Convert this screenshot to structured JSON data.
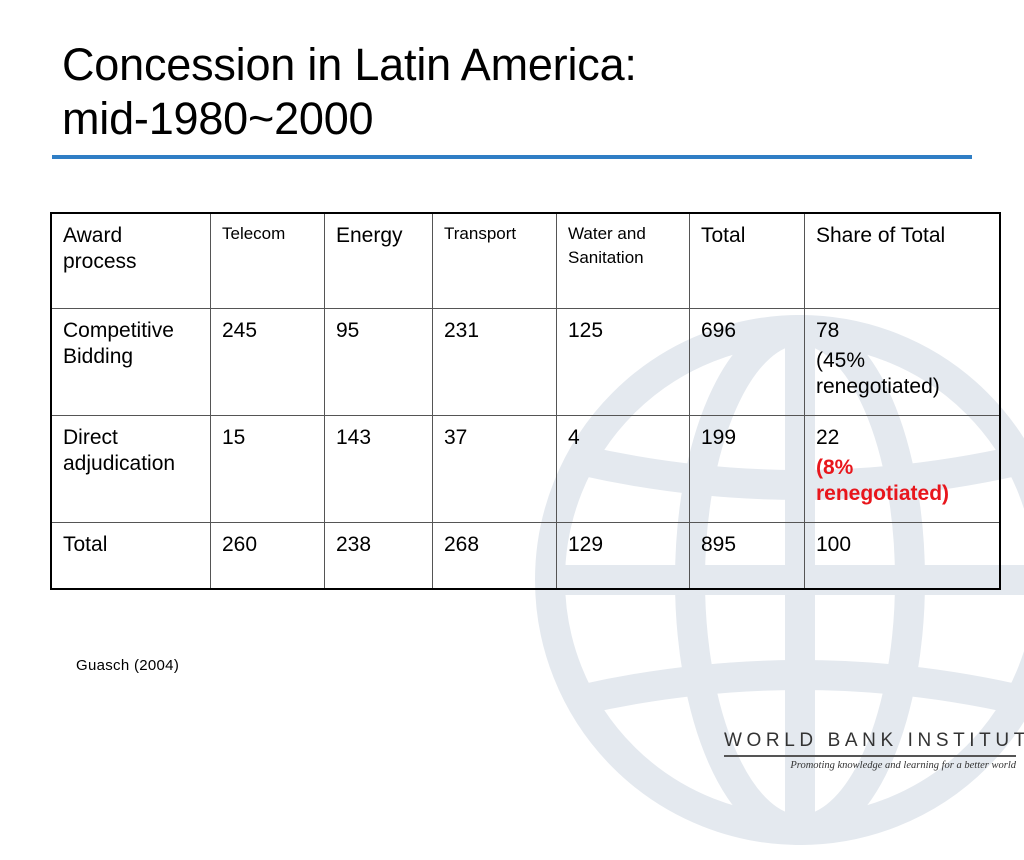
{
  "slide": {
    "title_line1": "Concession in Latin America:",
    "title_line2": "mid-1980~2000",
    "accent_color": "#2f7ec5",
    "highlight_color": "#e8161c"
  },
  "table": {
    "headers": [
      "Award process",
      "Telecom",
      "Energy",
      "Transport",
      "Water and Sanitation",
      "Total",
      "Share of Total"
    ],
    "rows": [
      {
        "label": "Competitive Bidding",
        "values": [
          "245",
          "95",
          "231",
          "125",
          "696"
        ],
        "share": "78",
        "share_note": "(45% renegotiated)"
      },
      {
        "label": "Direct adjudication",
        "values": [
          "15",
          "143",
          "37",
          "4",
          "199"
        ],
        "share": "22",
        "share_note": "(8% renegotiated)"
      },
      {
        "label": "Total",
        "values": [
          "260",
          "238",
          "268",
          "129",
          "895"
        ],
        "share": "100",
        "share_note": ""
      }
    ]
  },
  "source": "Guasch (2004)",
  "footer": {
    "brand": "WORLD BANK INSTITUTE",
    "tagline": "Promoting knowledge and learning for a better world"
  }
}
